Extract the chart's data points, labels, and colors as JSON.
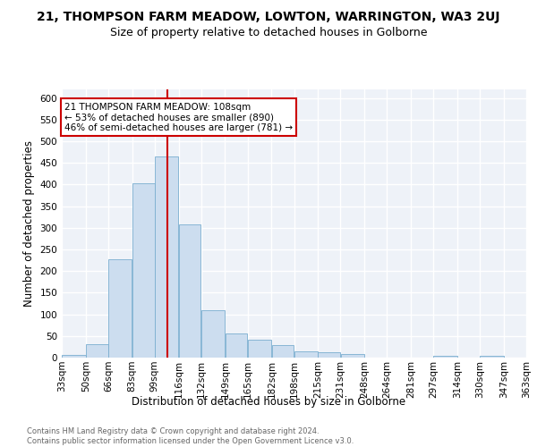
{
  "title": "21, THOMPSON FARM MEADOW, LOWTON, WARRINGTON, WA3 2UJ",
  "subtitle": "Size of property relative to detached houses in Golborne",
  "xlabel": "Distribution of detached houses by size in Golborne",
  "ylabel": "Number of detached properties",
  "bar_color": "#ccddef",
  "bar_edge_color": "#7aaed0",
  "vline_color": "#cc0000",
  "vline_x": 108,
  "annotation_line1": "21 THOMPSON FARM MEADOW: 108sqm",
  "annotation_line2": "← 53% of detached houses are smaller (890)",
  "annotation_line3": "46% of semi-detached houses are larger (781) →",
  "annotation_box_color": "#ffffff",
  "annotation_box_edge": "#cc0000",
  "footer": "Contains HM Land Registry data © Crown copyright and database right 2024.\nContains public sector information licensed under the Open Government Licence v3.0.",
  "bin_edges": [
    33,
    50,
    66,
    83,
    99,
    116,
    132,
    149,
    165,
    182,
    198,
    215,
    231,
    248,
    264,
    281,
    297,
    314,
    330,
    347,
    363
  ],
  "bar_heights": [
    7,
    30,
    228,
    403,
    465,
    307,
    109,
    55,
    41,
    29,
    14,
    12,
    8,
    0,
    0,
    0,
    5,
    0,
    5,
    0
  ],
  "ylim": [
    0,
    620
  ],
  "yticks": [
    0,
    50,
    100,
    150,
    200,
    250,
    300,
    350,
    400,
    450,
    500,
    550,
    600
  ],
  "background_color": "#eef2f8",
  "grid_color": "#ffffff",
  "title_fontsize": 10,
  "subtitle_fontsize": 9,
  "xlabel_fontsize": 8.5,
  "ylabel_fontsize": 8.5,
  "tick_fontsize": 7.5,
  "annot_fontsize": 7.5
}
